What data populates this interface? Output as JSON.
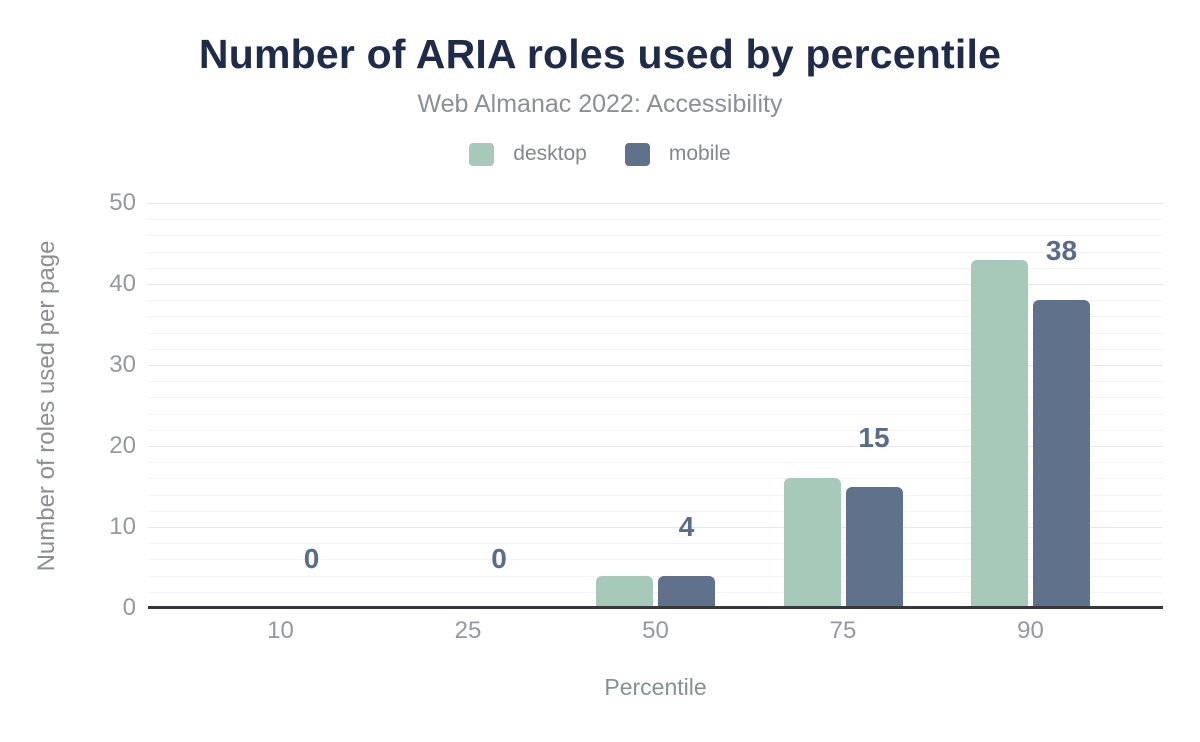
{
  "chart_data": {
    "type": "bar",
    "title": "Number of ARIA roles used by percentile",
    "subtitle": "Web Almanac 2022: Accessibility",
    "xlabel": "Percentile",
    "ylabel": "Number of roles used per page",
    "categories": [
      "10",
      "25",
      "50",
      "75",
      "90"
    ],
    "series": [
      {
        "name": "desktop",
        "color": "#a7c9ba",
        "values": [
          0,
          0,
          4,
          16,
          43
        ]
      },
      {
        "name": "mobile",
        "color": "#60718c",
        "values": [
          0,
          0,
          4,
          15,
          38
        ]
      }
    ],
    "data_labels": {
      "series": "mobile",
      "values": [
        "0",
        "0",
        "4",
        "15",
        "38"
      ]
    },
    "ylim": [
      0,
      50
    ],
    "yticks": [
      0,
      10,
      20,
      30,
      40,
      50
    ],
    "minor_grid_step": 2,
    "grid": true,
    "legend_position": "top"
  },
  "theme": {
    "background": "#ffffff",
    "title_color": "#1e2b4a",
    "subtitle_color": "#8b8f96",
    "axis_text_color": "#96989f",
    "value_label_color": "#5a6c8c",
    "axis_line_color": "#37383c",
    "grid_major_color": "#e8e8ea",
    "grid_minor_color": "#f4f4f6"
  }
}
